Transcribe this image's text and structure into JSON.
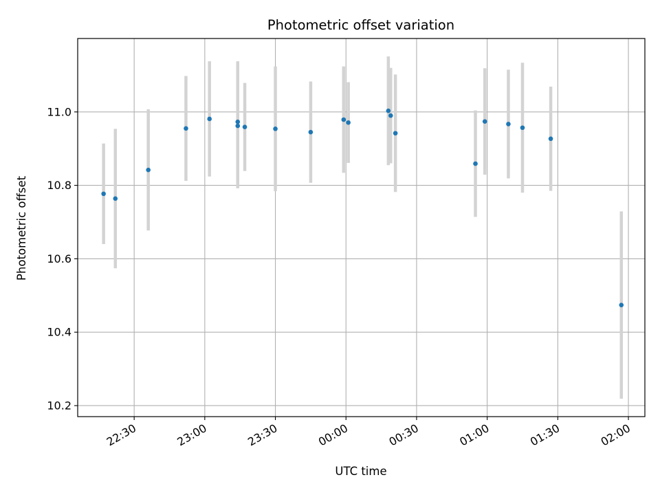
{
  "chart_data": {
    "type": "scatter",
    "title": "Photometric offset variation",
    "xlabel": "UTC time",
    "ylabel": "Photometric offset",
    "grid": true,
    "colors": {
      "point": "#1f77b4",
      "errorbar": "#d3d3d3",
      "grid": "#b0b0b0"
    },
    "xlim": [
      "22:06",
      "02:07"
    ],
    "ylim": [
      10.17,
      11.2
    ],
    "xticks": [
      "22:30",
      "23:00",
      "23:30",
      "00:00",
      "00:30",
      "01:00",
      "01:30",
      "02:00"
    ],
    "yticks": [
      "10.2",
      "10.4",
      "10.6",
      "10.8",
      "11.0"
    ],
    "points": [
      {
        "t": "22:17",
        "y": 10.777,
        "err": 0.137
      },
      {
        "t": "22:22",
        "y": 10.764,
        "err": 0.19
      },
      {
        "t": "22:36",
        "y": 10.842,
        "err": 0.165
      },
      {
        "t": "22:52",
        "y": 10.955,
        "err": 0.143
      },
      {
        "t": "23:02",
        "y": 10.981,
        "err": 0.157
      },
      {
        "t": "23:14",
        "y": 10.973,
        "err": 0.165
      },
      {
        "t": "23:14",
        "y": 10.962,
        "err": 0.17
      },
      {
        "t": "23:17",
        "y": 10.959,
        "err": 0.12
      },
      {
        "t": "23:30",
        "y": 10.954,
        "err": 0.17
      },
      {
        "t": "23:45",
        "y": 10.945,
        "err": 0.138
      },
      {
        "t": "23:59",
        "y": 10.979,
        "err": 0.145
      },
      {
        "t": "00:01",
        "y": 10.971,
        "err": 0.11
      },
      {
        "t": "00:18",
        "y": 11.003,
        "err": 0.148
      },
      {
        "t": "00:19",
        "y": 10.99,
        "err": 0.13
      },
      {
        "t": "00:21",
        "y": 10.942,
        "err": 0.16
      },
      {
        "t": "00:55",
        "y": 10.859,
        "err": 0.145
      },
      {
        "t": "00:59",
        "y": 10.974,
        "err": 0.145
      },
      {
        "t": "01:09",
        "y": 10.967,
        "err": 0.148
      },
      {
        "t": "01:15",
        "y": 10.957,
        "err": 0.177
      },
      {
        "t": "01:27",
        "y": 10.927,
        "err": 0.142
      },
      {
        "t": "01:57",
        "y": 10.474,
        "err": 0.255
      }
    ]
  }
}
